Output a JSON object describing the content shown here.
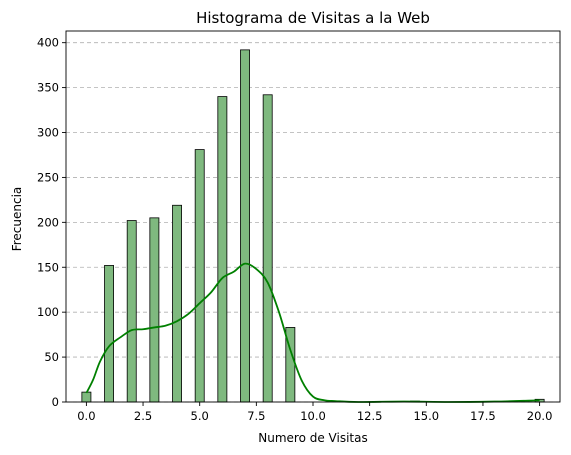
{
  "chart_data": {
    "type": "bar",
    "title": "Histograma de Visitas a la Web",
    "xlabel": "Numero de Visitas",
    "ylabel": "Frecuencia",
    "xlim": [
      -0.9,
      20.9
    ],
    "ylim": [
      0,
      413
    ],
    "xticks": [
      0,
      2.5,
      5,
      7.5,
      10,
      12.5,
      15,
      17.5,
      20
    ],
    "xtick_labels": [
      "0.0",
      "2.5",
      "5.0",
      "7.5",
      "10.0",
      "12.5",
      "15.0",
      "17.5",
      "20.0"
    ],
    "yticks": [
      0,
      50,
      100,
      150,
      200,
      250,
      300,
      350,
      400
    ],
    "ytick_labels": [
      "0",
      "50",
      "100",
      "150",
      "200",
      "250",
      "300",
      "350",
      "400"
    ],
    "grid": "y-dashed",
    "bin_width": 0.4,
    "bars": [
      {
        "x": 0,
        "value": 11
      },
      {
        "x": 1,
        "value": 152
      },
      {
        "x": 2,
        "value": 202
      },
      {
        "x": 3,
        "value": 205
      },
      {
        "x": 4,
        "value": 219
      },
      {
        "x": 5,
        "value": 281
      },
      {
        "x": 6,
        "value": 340
      },
      {
        "x": 7,
        "value": 392
      },
      {
        "x": 8,
        "value": 342
      },
      {
        "x": 9,
        "value": 83
      },
      {
        "x": 10,
        "value": 0
      },
      {
        "x": 14.5,
        "value": 1
      },
      {
        "x": 20,
        "value": 3
      }
    ],
    "kde": {
      "x": [
        0,
        0.3,
        0.6,
        1,
        1.5,
        2,
        2.5,
        3,
        3.5,
        4,
        4.5,
        5,
        5.5,
        6,
        6.5,
        7,
        7.5,
        8,
        8.5,
        9,
        9.5,
        10,
        10.5,
        11,
        12,
        14,
        16,
        18,
        19.5,
        20
      ],
      "y": [
        10,
        25,
        45,
        62,
        72,
        80,
        81,
        83,
        85,
        90,
        98,
        110,
        122,
        138,
        145,
        154,
        148,
        133,
        100,
        58,
        24,
        6,
        2,
        1,
        0,
        0.5,
        0,
        0.5,
        1.5,
        2
      ]
    },
    "bar_color": "#7fb97f",
    "kde_color": "#008000"
  }
}
